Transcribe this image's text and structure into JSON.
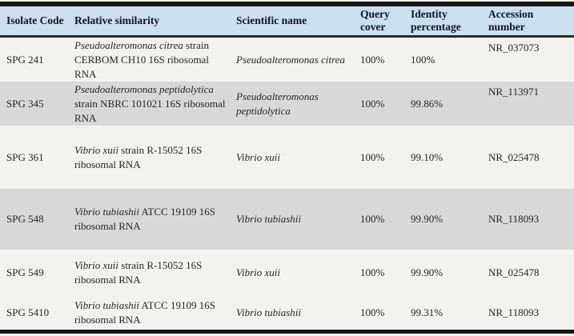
{
  "table": {
    "columns": [
      {
        "label": "Isolate Code"
      },
      {
        "label": "Relative similarity"
      },
      {
        "label": "Scientific name"
      },
      {
        "label": "Query cover"
      },
      {
        "label": "Identity percentage"
      },
      {
        "label": "Accession number"
      }
    ],
    "rows": [
      {
        "isolate_code": "SPG 241",
        "similarity_species": "Pseudoalteromonas citrea",
        "similarity_rest": "strain CERBOM CH10 16S ribosomal RNA",
        "scientific_name": "Pseudoalteromonas citrea",
        "query_cover": "100%",
        "identity_percentage": "100%",
        "accession_number": "NR_037073"
      },
      {
        "isolate_code": "SPG 345",
        "similarity_species": "Pseudoalteromonas peptidolytica",
        "similarity_rest": "strain NBRC 101021 16S ribosomal RNA",
        "scientific_name": "Pseudoalteromonas peptidolytica",
        "query_cover": "100%",
        "identity_percentage": "99.86%",
        "accession_number": "NR_113971"
      },
      {
        "isolate_code": "SPG 361",
        "similarity_species": "Vibrio xuii",
        "similarity_rest": "strain R-15052 16S ribosomal RNA",
        "scientific_name": "Vibrio xuii",
        "query_cover": "100%",
        "identity_percentage": "99.10%",
        "accession_number": "NR_025478"
      },
      {
        "isolate_code": "SPG 548",
        "similarity_species": "Vibrio tubiashii",
        "similarity_rest": "ATCC 19109 16S ribosomal RNA",
        "scientific_name": "Vibrio tubiashii",
        "query_cover": "100%",
        "identity_percentage": "99.90%",
        "accession_number": "NR_118093"
      },
      {
        "isolate_code": "SPG 549",
        "similarity_species": "Vibrio xuii",
        "similarity_rest": "strain R-15052 16S ribosomal RNA",
        "scientific_name": "Vibrio xuii",
        "query_cover": "100%",
        "identity_percentage": "99.90%",
        "accession_number": "NR_025478"
      },
      {
        "isolate_code": "SPG 5410",
        "similarity_species": "Vibrio tubiashii",
        "similarity_rest": "ATCC 19109 16S ribosomal RNA",
        "scientific_name": "Vibrio tubiashii",
        "query_cover": "100%",
        "identity_percentage": "99.31%",
        "accession_number": "NR_118093"
      }
    ]
  },
  "colors": {
    "header_bg": "#cbdfee",
    "shaded_row_bg": "#d8d8d8",
    "row_bg": "#f4f2ef",
    "rule_black": "#161616",
    "header_text": "#101623",
    "body_text": "#262626"
  }
}
